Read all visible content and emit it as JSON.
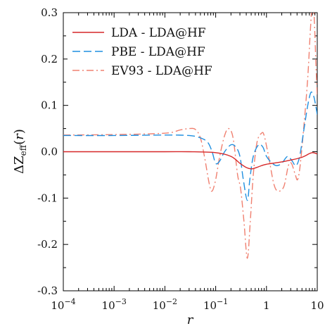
{
  "chart_data": {
    "type": "line",
    "xlabel": "r",
    "ylabel": "ΔZ_eff(r)",
    "xscale": "log",
    "xlim": [
      0.0001,
      10
    ],
    "ylim": [
      -0.3,
      0.3
    ],
    "grid": false,
    "legend_position": "top-left",
    "x_ticks": [
      {
        "value": 0.0001,
        "base": "10",
        "exp": "−4"
      },
      {
        "value": 0.001,
        "base": "10",
        "exp": "−3"
      },
      {
        "value": 0.01,
        "base": "10",
        "exp": "−2"
      },
      {
        "value": 0.1,
        "base": "10",
        "exp": "−1"
      },
      {
        "value": 1,
        "base": "1",
        "exp": ""
      },
      {
        "value": 10,
        "base": "10",
        "exp": ""
      }
    ],
    "y_ticks": [
      {
        "value": -0.3,
        "label": "-0.3"
      },
      {
        "value": -0.2,
        "label": "-0.2"
      },
      {
        "value": -0.1,
        "label": "-0.1"
      },
      {
        "value": 0.0,
        "label": "0.0"
      },
      {
        "value": 0.1,
        "label": "0.1"
      },
      {
        "value": 0.2,
        "label": "0.2"
      },
      {
        "value": 0.3,
        "label": "0.3"
      }
    ],
    "series": [
      {
        "name": "LDA - LDA@HF",
        "color": "#d62728",
        "dash": "solid",
        "points": [
          [
            0.0001,
            0.0
          ],
          [
            0.001,
            0.0
          ],
          [
            0.01,
            0.0
          ],
          [
            0.03,
            0.0
          ],
          [
            0.1,
            -0.002
          ],
          [
            0.2,
            -0.01
          ],
          [
            0.3,
            -0.025
          ],
          [
            0.4,
            -0.034
          ],
          [
            0.5,
            -0.037
          ],
          [
            0.6,
            -0.035
          ],
          [
            0.8,
            -0.03
          ],
          [
            1.0,
            -0.027
          ],
          [
            1.5,
            -0.024
          ],
          [
            2.0,
            -0.022
          ],
          [
            3.0,
            -0.018
          ],
          [
            4.0,
            -0.015
          ],
          [
            5.0,
            -0.012
          ],
          [
            6.0,
            -0.008
          ],
          [
            7.0,
            -0.004
          ],
          [
            8.0,
            -0.002
          ],
          [
            9.0,
            -0.003
          ],
          [
            10.0,
            -0.005
          ]
        ]
      },
      {
        "name": "PBE - LDA@HF",
        "color": "#1f8fe0",
        "dash": "dashed",
        "points": [
          [
            0.0001,
            0.035
          ],
          [
            0.001,
            0.035
          ],
          [
            0.01,
            0.036
          ],
          [
            0.03,
            0.035
          ],
          [
            0.05,
            0.03
          ],
          [
            0.07,
            0.02
          ],
          [
            0.085,
            0.0
          ],
          [
            0.1,
            -0.025
          ],
          [
            0.12,
            -0.02
          ],
          [
            0.15,
            0.0
          ],
          [
            0.2,
            0.015
          ],
          [
            0.25,
            0.01
          ],
          [
            0.3,
            -0.01
          ],
          [
            0.35,
            -0.06
          ],
          [
            0.42,
            -0.105
          ],
          [
            0.47,
            -0.06
          ],
          [
            0.55,
            -0.01
          ],
          [
            0.7,
            0.015
          ],
          [
            0.85,
            0.01
          ],
          [
            1.0,
            -0.01
          ],
          [
            1.3,
            -0.025
          ],
          [
            1.6,
            -0.03
          ],
          [
            2.0,
            -0.025
          ],
          [
            2.6,
            -0.01
          ],
          [
            3.2,
            -0.02
          ],
          [
            3.8,
            -0.03
          ],
          [
            4.5,
            -0.01
          ],
          [
            5.5,
            0.05
          ],
          [
            6.5,
            0.1
          ],
          [
            7.5,
            0.128
          ],
          [
            8.5,
            0.12
          ],
          [
            9.3,
            0.1
          ],
          [
            10.0,
            0.08
          ]
        ]
      },
      {
        "name": "EV93 - LDA@HF",
        "color": "#f08070",
        "dash": "dashdot",
        "points": [
          [
            0.0001,
            0.036
          ],
          [
            0.001,
            0.037
          ],
          [
            0.01,
            0.04
          ],
          [
            0.02,
            0.047
          ],
          [
            0.03,
            0.05
          ],
          [
            0.04,
            0.048
          ],
          [
            0.05,
            0.03
          ],
          [
            0.06,
            -0.01
          ],
          [
            0.075,
            -0.07
          ],
          [
            0.085,
            -0.085
          ],
          [
            0.1,
            -0.06
          ],
          [
            0.12,
            -0.01
          ],
          [
            0.15,
            0.035
          ],
          [
            0.18,
            0.05
          ],
          [
            0.22,
            0.03
          ],
          [
            0.27,
            -0.05
          ],
          [
            0.31,
            -0.08
          ],
          [
            0.36,
            -0.15
          ],
          [
            0.42,
            -0.23
          ],
          [
            0.48,
            -0.15
          ],
          [
            0.55,
            -0.05
          ],
          [
            0.65,
            0.02
          ],
          [
            0.8,
            0.04
          ],
          [
            0.9,
            0.035
          ],
          [
            1.1,
            -0.01
          ],
          [
            1.4,
            -0.07
          ],
          [
            1.7,
            -0.085
          ],
          [
            2.2,
            -0.075
          ],
          [
            2.7,
            -0.03
          ],
          [
            3.1,
            -0.025
          ],
          [
            3.7,
            -0.05
          ],
          [
            4.1,
            -0.06
          ],
          [
            4.6,
            -0.03
          ],
          [
            5.5,
            0.06
          ],
          [
            6.5,
            0.16
          ],
          [
            7.3,
            0.26
          ],
          [
            8.0,
            0.32
          ],
          [
            8.7,
            0.29
          ],
          [
            9.4,
            0.19
          ],
          [
            10.0,
            0.12
          ]
        ]
      }
    ]
  }
}
